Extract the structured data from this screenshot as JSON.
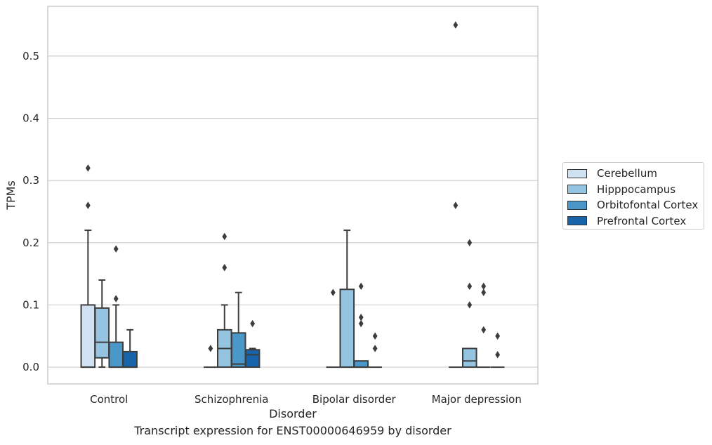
{
  "chart_data": {
    "type": "boxplot",
    "title": "",
    "caption": "Transcript expression for ENST00000646959 by disorder",
    "xlabel": "Disorder",
    "ylabel": "TPMs",
    "ylim": [
      -0.027,
      0.58
    ],
    "yticks": [
      0.0,
      0.1,
      0.2,
      0.3,
      0.4,
      0.5
    ],
    "ytick_labels": [
      "0.0",
      "0.1",
      "0.2",
      "0.3",
      "0.4",
      "0.5"
    ],
    "grid": "horizontal",
    "legend_position": "right",
    "categories": [
      "Control",
      "Schizophrenia",
      "Bipolar disorder",
      "Major depression"
    ],
    "series": [
      {
        "name": "Cerebellum",
        "color": "#d0e1f2",
        "boxes": [
          {
            "q1": 0.0,
            "median": 0.0,
            "q3": 0.1,
            "whisker_low": 0.0,
            "whisker_high": 0.22,
            "outliers": [
              0.26,
              0.32
            ]
          },
          {
            "q1": 0.0,
            "median": 0.0,
            "q3": 0.0,
            "whisker_low": 0.0,
            "whisker_high": 0.0,
            "outliers": [
              0.03
            ]
          },
          {
            "q1": 0.0,
            "median": 0.0,
            "q3": 0.0,
            "whisker_low": 0.0,
            "whisker_high": 0.0,
            "outliers": [
              0.12
            ]
          },
          {
            "q1": 0.0,
            "median": 0.0,
            "q3": 0.0,
            "whisker_low": 0.0,
            "whisker_high": 0.0,
            "outliers": [
              0.26,
              0.55
            ]
          }
        ]
      },
      {
        "name": "Hipppocampus",
        "color": "#94c4df",
        "boxes": [
          {
            "q1": 0.015,
            "median": 0.04,
            "q3": 0.095,
            "whisker_low": 0.0,
            "whisker_high": 0.14,
            "outliers": []
          },
          {
            "q1": 0.0,
            "median": 0.03,
            "q3": 0.06,
            "whisker_low": 0.0,
            "whisker_high": 0.1,
            "outliers": [
              0.16,
              0.21
            ]
          },
          {
            "q1": 0.0,
            "median": 0.0,
            "q3": 0.125,
            "whisker_low": 0.0,
            "whisker_high": 0.22,
            "outliers": []
          },
          {
            "q1": 0.0,
            "median": 0.01,
            "q3": 0.03,
            "whisker_low": 0.0,
            "whisker_high": 0.03,
            "outliers": [
              0.1,
              0.13,
              0.2
            ]
          }
        ]
      },
      {
        "name": "Orbitofontal Cortex",
        "color": "#4a98c9",
        "boxes": [
          {
            "q1": 0.0,
            "median": 0.0,
            "q3": 0.04,
            "whisker_low": 0.0,
            "whisker_high": 0.1,
            "outliers": [
              0.11,
              0.19
            ]
          },
          {
            "q1": 0.0,
            "median": 0.005,
            "q3": 0.055,
            "whisker_low": 0.0,
            "whisker_high": 0.12,
            "outliers": []
          },
          {
            "q1": 0.0,
            "median": 0.0,
            "q3": 0.01,
            "whisker_low": 0.0,
            "whisker_high": 0.01,
            "outliers": [
              0.07,
              0.08,
              0.13
            ]
          },
          {
            "q1": 0.0,
            "median": 0.0,
            "q3": 0.0,
            "whisker_low": 0.0,
            "whisker_high": 0.0,
            "outliers": [
              0.06,
              0.12,
              0.13
            ]
          }
        ]
      },
      {
        "name": "Prefrontal Cortex",
        "color": "#1764ab",
        "boxes": [
          {
            "q1": 0.0,
            "median": 0.0,
            "q3": 0.025,
            "whisker_low": 0.0,
            "whisker_high": 0.06,
            "outliers": []
          },
          {
            "q1": 0.0,
            "median": 0.02,
            "q3": 0.028,
            "whisker_low": 0.0,
            "whisker_high": 0.03,
            "outliers": [
              0.07
            ]
          },
          {
            "q1": 0.0,
            "median": 0.0,
            "q3": 0.0,
            "whisker_low": 0.0,
            "whisker_high": 0.0,
            "outliers": [
              0.03,
              0.05
            ]
          },
          {
            "q1": 0.0,
            "median": 0.0,
            "q3": 0.0,
            "whisker_low": 0.0,
            "whisker_high": 0.0,
            "outliers": [
              0.02,
              0.05
            ]
          }
        ]
      }
    ]
  }
}
